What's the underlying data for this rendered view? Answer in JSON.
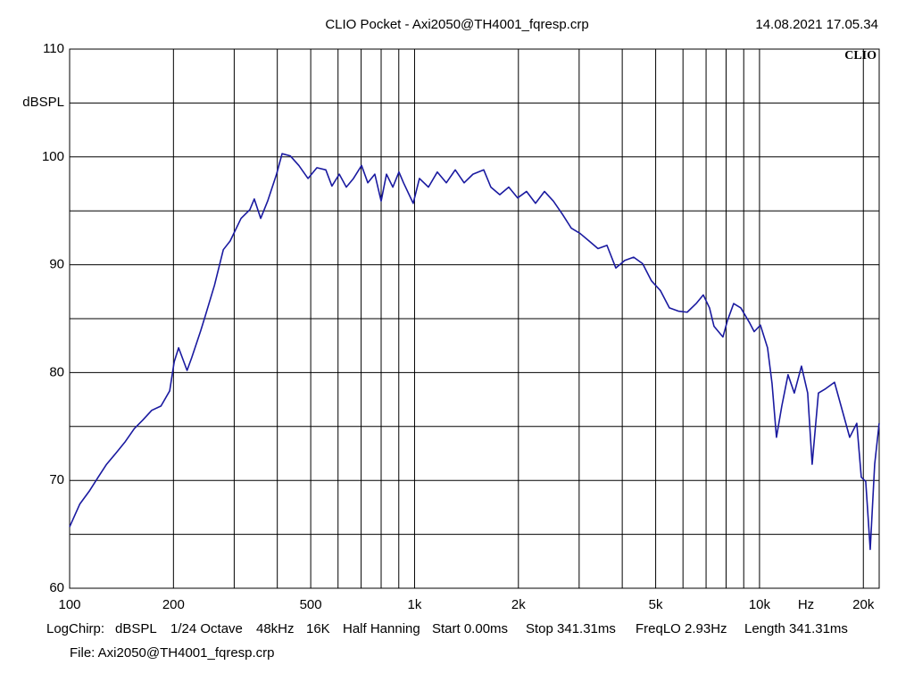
{
  "chart_data": {
    "type": "line",
    "title": "CLIO Pocket - Axi2050@TH4001_fqresp.crp",
    "timestamp": "14.08.2021 17.05.34",
    "logo": "CLIO",
    "y_label": "dBSPL",
    "x_label": "Hz",
    "x_log": true,
    "grid": true,
    "xlim": [
      100,
      22230
    ],
    "ylim": [
      60,
      110
    ],
    "xticks": [
      100,
      200,
      500,
      {
        "value": 1000,
        "label": "1k"
      },
      {
        "value": 2000,
        "label": "2k"
      },
      {
        "value": 5000,
        "label": "5k"
      },
      {
        "value": 10000,
        "label": "10k"
      },
      {
        "value": 20000,
        "label": "20k"
      }
    ],
    "xminor": [
      300,
      400,
      600,
      700,
      800,
      900,
      3000,
      4000,
      6000,
      7000,
      8000,
      9000
    ],
    "yticks": [
      60,
      70,
      80,
      90,
      100,
      110
    ],
    "yminor": [
      65,
      75,
      85,
      95,
      105
    ],
    "x": [
      100,
      107,
      114,
      121,
      128,
      136,
      145,
      154,
      163,
      173,
      184,
      195,
      201,
      207,
      219,
      226,
      240,
      247,
      263,
      279,
      292,
      314,
      333,
      343,
      358,
      375,
      398,
      413,
      436,
      462,
      491,
      521,
      553,
      576,
      605,
      634,
      665,
      702,
      732,
      767,
      800,
      829,
      865,
      901,
      929,
      991,
      1033,
      1097,
      1164,
      1236,
      1312,
      1392,
      1477,
      1587,
      1664,
      1766,
      1875,
      1990,
      2112,
      2242,
      2380,
      2526,
      2681,
      2846,
      3020,
      3206,
      3402,
      3612,
      3832,
      4068,
      4317,
      4583,
      4863,
      5162,
      5479,
      5815,
      6171,
      6550,
      6871,
      7163,
      7379,
      7832,
      8069,
      8414,
      8826,
      9366,
      9650,
      10060,
      10551,
      10871,
      11198,
      11605,
      12097,
      12614,
      13232,
      13793,
      14211,
      14818,
      15542,
      16496,
      17510,
      18255,
      19143,
      19724,
      20321,
      20939,
      21571,
      22226
    ],
    "series": [
      {
        "color": "#1a1aa0",
        "values": [
          65.7,
          67.8,
          69.0,
          70.3,
          71.5,
          72.5,
          73.6,
          74.8,
          75.6,
          76.5,
          76.9,
          78.3,
          81.0,
          82.3,
          80.2,
          81.4,
          83.9,
          85.2,
          88.1,
          91.4,
          92.2,
          94.3,
          95.1,
          96.1,
          94.3,
          95.9,
          98.4,
          100.3,
          100.1,
          99.2,
          98.0,
          99.0,
          98.8,
          97.3,
          98.4,
          97.2,
          98.0,
          99.2,
          97.6,
          98.4,
          95.9,
          98.4,
          97.2,
          98.6,
          97.6,
          95.7,
          98.0,
          97.2,
          98.6,
          97.6,
          98.8,
          97.6,
          98.4,
          98.8,
          97.2,
          96.5,
          97.2,
          96.2,
          96.8,
          95.7,
          96.8,
          95.9,
          94.7,
          93.4,
          92.9,
          92.2,
          91.5,
          91.8,
          89.7,
          90.4,
          90.7,
          90.1,
          88.5,
          87.6,
          86.0,
          85.7,
          85.6,
          86.4,
          87.2,
          86.0,
          84.3,
          83.3,
          84.8,
          86.4,
          86.0,
          84.6,
          83.8,
          84.4,
          82.3,
          79.0,
          74.0,
          76.9,
          79.8,
          78.1,
          80.6,
          78.1,
          71.5,
          78.1,
          78.5,
          79.1,
          76.1,
          74.0,
          75.3,
          70.3,
          69.9,
          63.6,
          71.5,
          75.3
        ]
      }
    ]
  },
  "footer": {
    "settings": [
      "LogChirp:",
      "dBSPL",
      "1/24 Octave",
      "48kHz",
      "16K",
      "Half Hanning",
      "Start 0.00ms",
      "Stop 341.31ms",
      "FreqLO 2.93Hz",
      "Length 341.31ms"
    ],
    "file": "File: Axi2050@TH4001_fqresp.crp"
  }
}
